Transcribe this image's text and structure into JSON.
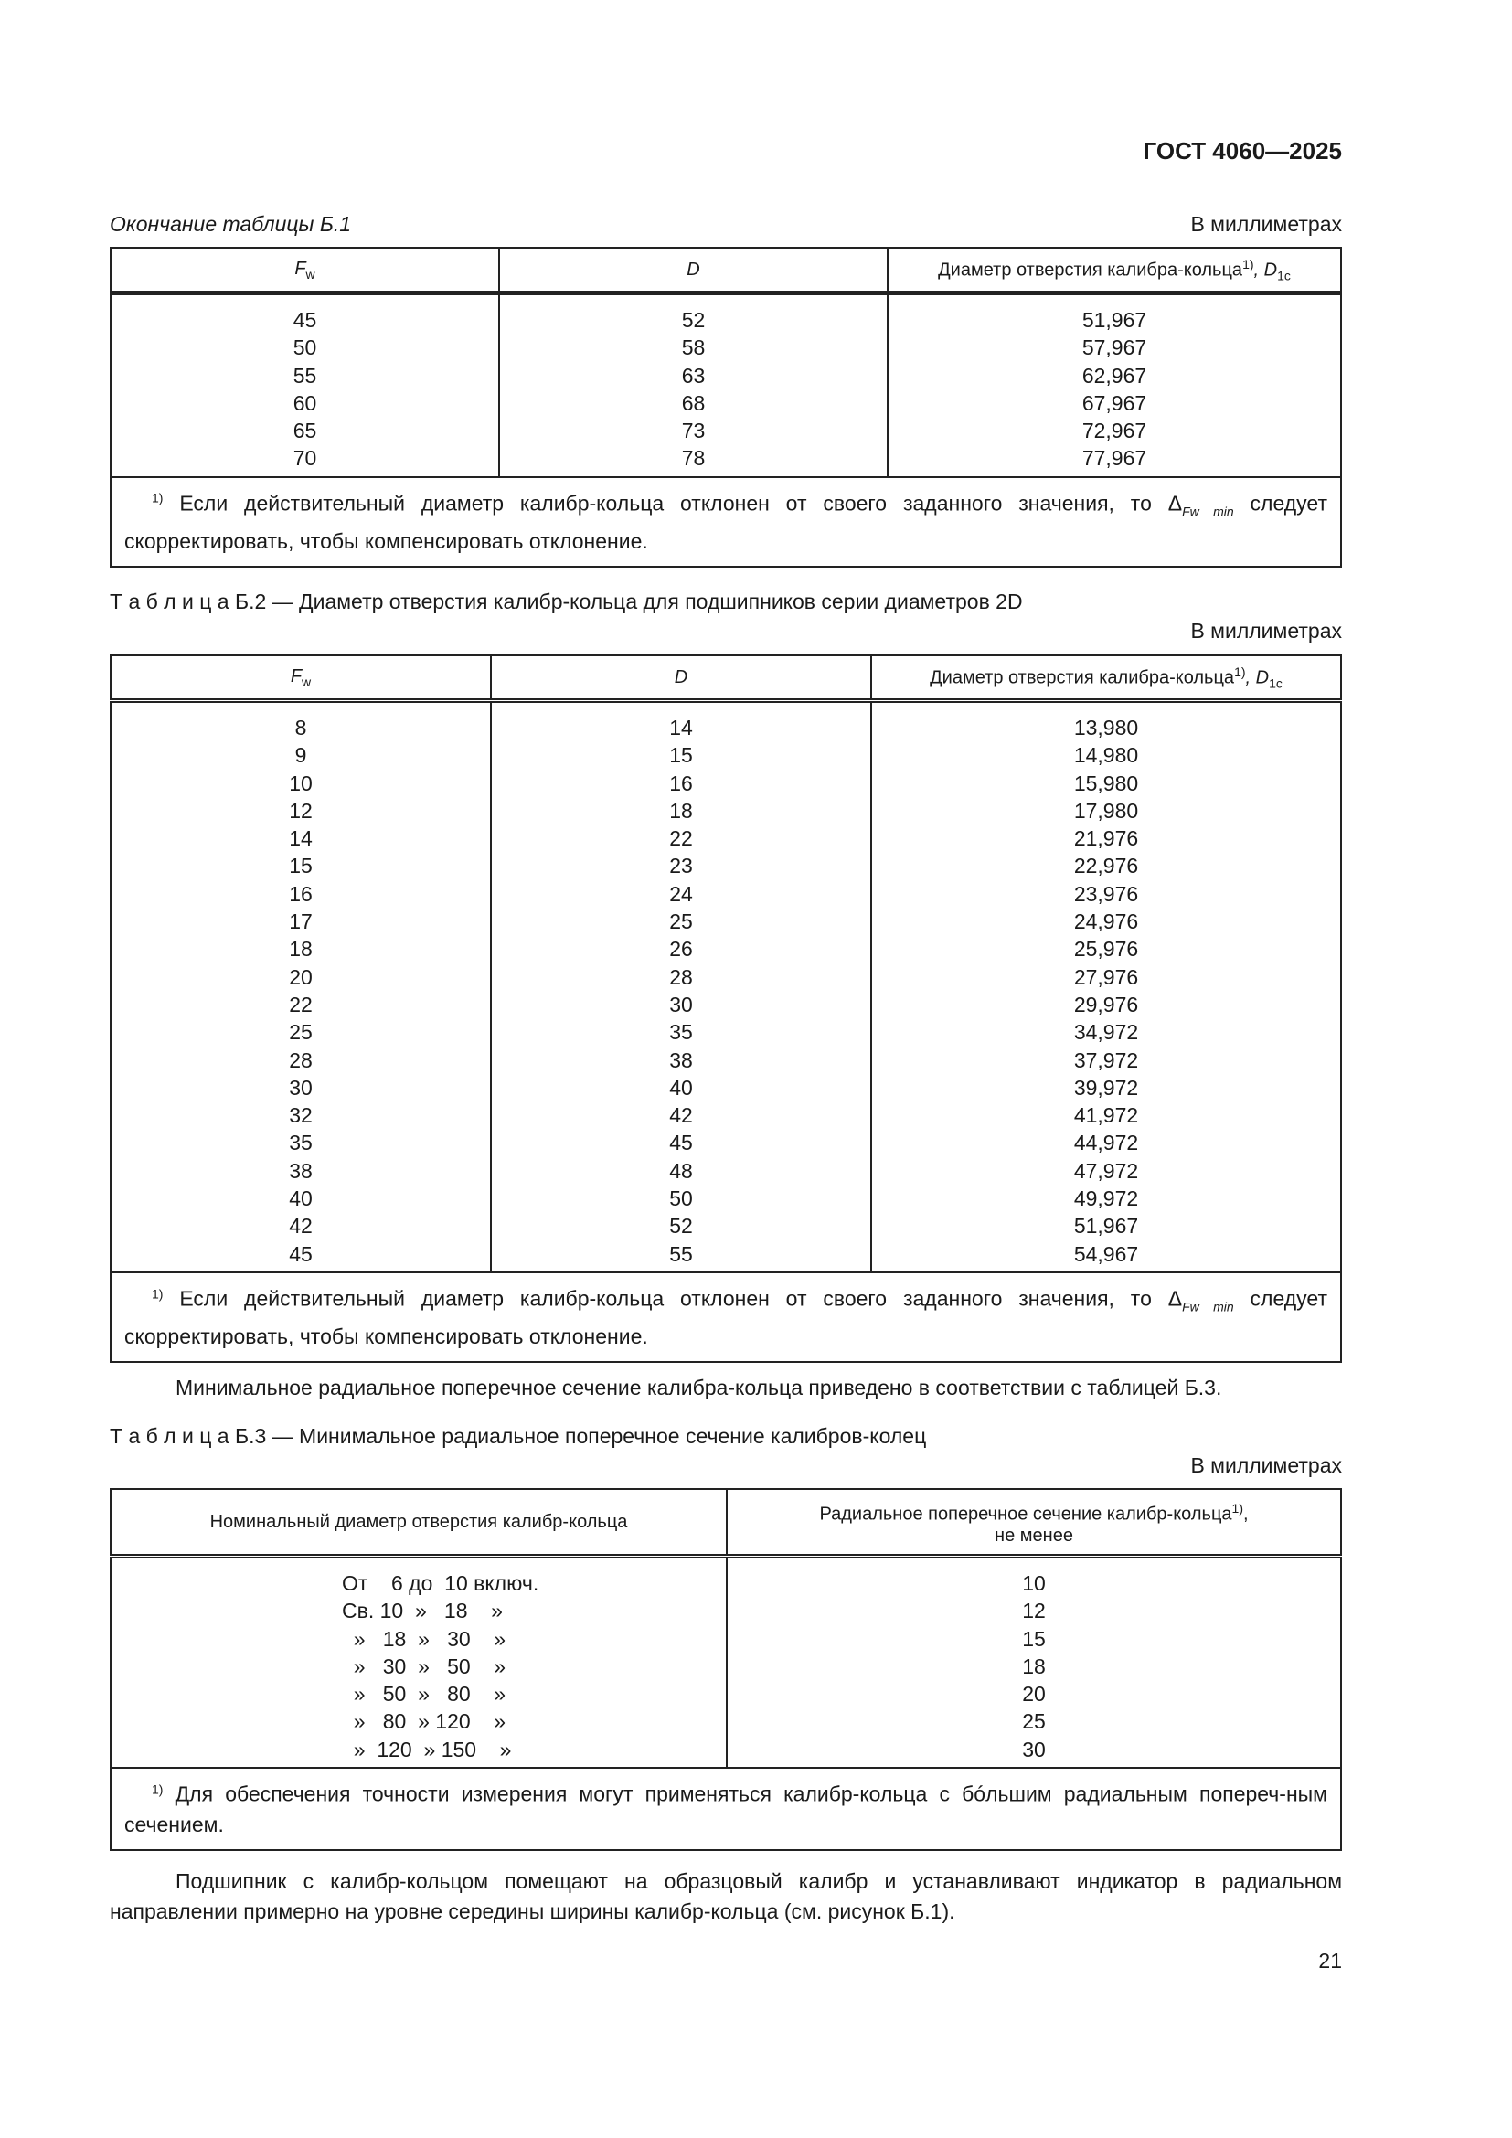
{
  "header": {
    "doc_id": "ГОСТ 4060—2025"
  },
  "table1": {
    "caption": "Окончание таблицы Б.1",
    "unit": "В миллиметрах",
    "headers": [
      "F",
      "w",
      "D",
      "Диаметр отверстия калибра-кольца",
      "1)",
      ", D",
      "1c"
    ],
    "col1": [
      "45",
      "50",
      "55",
      "60",
      "65",
      "70"
    ],
    "col2": [
      "52",
      "58",
      "63",
      "68",
      "73",
      "78"
    ],
    "col3": [
      "51,967",
      "57,967",
      "62,967",
      "67,967",
      "72,967",
      "77,967"
    ],
    "footnote": {
      "mark": "1)",
      "text_a": " Если действительный диаметр калибр-кольца отклонен от своего заданного значения, то Δ",
      "sub": "Fw min",
      "text_b": " следует скорректировать, чтобы компенсировать отклонение."
    }
  },
  "table2": {
    "caption": "Т а б л и ц а  Б.2 — Диаметр отверстия калибр-кольца для подшипников серии диаметров 2D",
    "unit": "В  миллиметрах",
    "headers": [
      "F",
      "w",
      "D",
      "Диаметр отверстия калибра-кольца",
      "1)",
      ", D",
      "1c"
    ],
    "col1": [
      "8",
      "9",
      "10",
      "12",
      "14",
      "15",
      "16",
      "17",
      "18",
      "20",
      "22",
      "25",
      "28",
      "30",
      "32",
      "35",
      "38",
      "40",
      "42",
      "45"
    ],
    "col2": [
      "14",
      "15",
      "16",
      "18",
      "22",
      "23",
      "24",
      "25",
      "26",
      "28",
      "30",
      "35",
      "38",
      "40",
      "42",
      "45",
      "48",
      "50",
      "52",
      "55"
    ],
    "col3": [
      "13,980",
      "14,980",
      "15,980",
      "17,980",
      "21,976",
      "22,976",
      "23,976",
      "24,976",
      "25,976",
      "27,976",
      "29,976",
      "34,972",
      "37,972",
      "39,972",
      "41,972",
      "44,972",
      "47,972",
      "49,972",
      "51,967",
      "54,967"
    ],
    "footnote": {
      "mark": "1)",
      "text_a": " Если действительный диаметр калибр-кольца отклонен от своего заданного значения, то Δ",
      "sub": "Fw min",
      "text_b": " следует скорректировать, чтобы компенсировать отклонение."
    }
  },
  "para1": "Минимальное радиальное поперечное сечение калибра-кольца приведено в соответствии с таблицей Б.3.",
  "table3": {
    "caption": "Т а б л и ц а  Б.3 — Минимальное радиальное поперечное сечение калибров-колец",
    "unit": "В  миллиметрах",
    "headers": [
      "Номинальный диаметр отверстия калибр-кольца",
      "Радиальное поперечное сечение калибр-кольца",
      "1)",
      ",",
      "не менее"
    ],
    "col1": [
      "От    6 до  10 включ.",
      "Св. 10  »   18    »",
      "  »   18  »   30    »",
      "  »   30  »   50    »",
      "  »   50  »   80    »",
      "  »   80  » 120    »",
      "  »  120  » 150    »"
    ],
    "col2": [
      "10",
      "12",
      "15",
      "18",
      "20",
      "25",
      "30"
    ],
    "footnote": {
      "mark": "1)",
      "text": " Для обеспечения точности измерения могут применяться калибр-кольца с бóльшим радиальным попереч-ным сечением."
    }
  },
  "para2": "Подшипник с калибр-кольцом помещают на образцовый калибр и устанавливают индикатор в радиальном направлении примерно на уровне середины ширины калибр-кольца (см. рисунок Б.1).",
  "page_number": "21"
}
